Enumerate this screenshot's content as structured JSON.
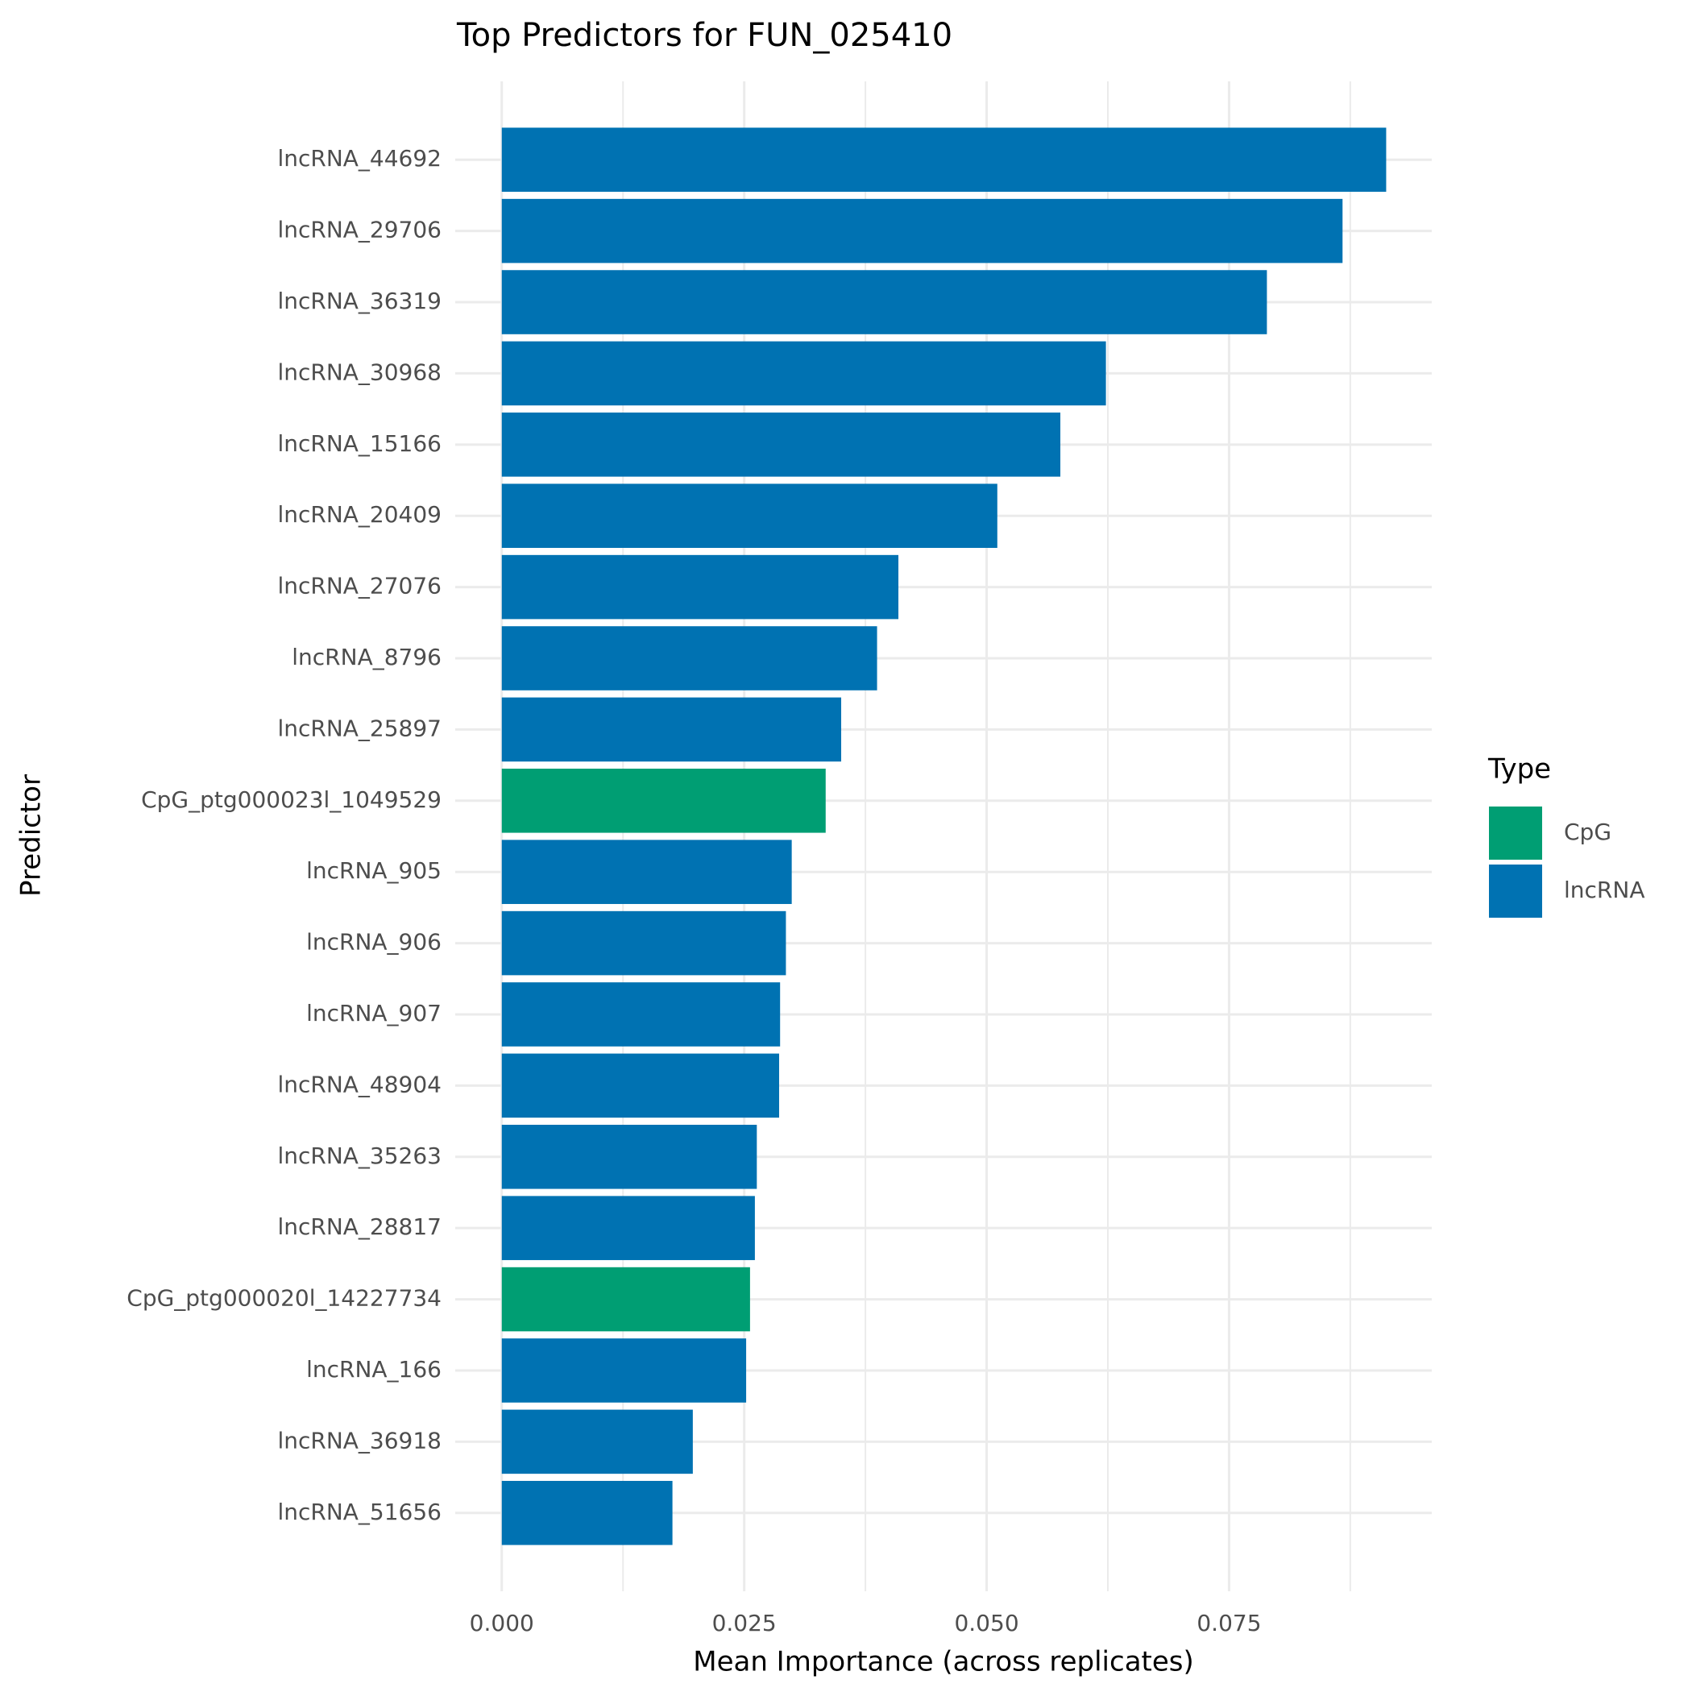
{
  "chart_data": {
    "type": "hbar",
    "title": "Top Predictors for FUN_025410",
    "x_label": "Mean Importance (across replicates)",
    "y_label": "Predictor",
    "categories": [
      "lncRNA_44692",
      "lncRNA_29706",
      "lncRNA_36319",
      "lncRNA_30968",
      "lncRNA_15166",
      "lncRNA_20409",
      "lncRNA_27076",
      "lncRNA_8796",
      "lncRNA_25897",
      "CpG_ptg000023l_1049529",
      "lncRNA_905",
      "lncRNA_906",
      "lncRNA_907",
      "lncRNA_48904",
      "lncRNA_35263",
      "lncRNA_28817",
      "CpG_ptg000020l_14227734",
      "lncRNA_166",
      "lncRNA_36918",
      "lncRNA_51656"
    ],
    "values": [
      0.0912,
      0.0867,
      0.0789,
      0.0623,
      0.0576,
      0.0511,
      0.0409,
      0.0387,
      0.035,
      0.0334,
      0.0299,
      0.0293,
      0.0287,
      0.0286,
      0.0263,
      0.0261,
      0.0256,
      0.0252,
      0.0197,
      0.0176
    ],
    "types": [
      "lncRNA",
      "lncRNA",
      "lncRNA",
      "lncRNA",
      "lncRNA",
      "lncRNA",
      "lncRNA",
      "lncRNA",
      "lncRNA",
      "CpG",
      "lncRNA",
      "lncRNA",
      "lncRNA",
      "lncRNA",
      "lncRNA",
      "lncRNA",
      "CpG",
      "lncRNA",
      "lncRNA",
      "lncRNA"
    ],
    "legend_title": "Type",
    "legend": [
      {
        "name": "CpG",
        "color": "#009E73"
      },
      {
        "name": "lncRNA",
        "color": "#0072B2"
      }
    ],
    "legend_position": "right",
    "xlim": [
      -0.0048,
      0.0959
    ],
    "xticks": [
      {
        "value": 0,
        "label": "0.000"
      },
      {
        "value": 0.025,
        "label": "0.025"
      },
      {
        "value": 0.05,
        "label": "0.050"
      },
      {
        "value": 0.075,
        "label": "0.075"
      }
    ],
    "x_minor_ticks": [
      0.0125,
      0.0375,
      0.0625,
      0.0875
    ],
    "grid": true
  }
}
